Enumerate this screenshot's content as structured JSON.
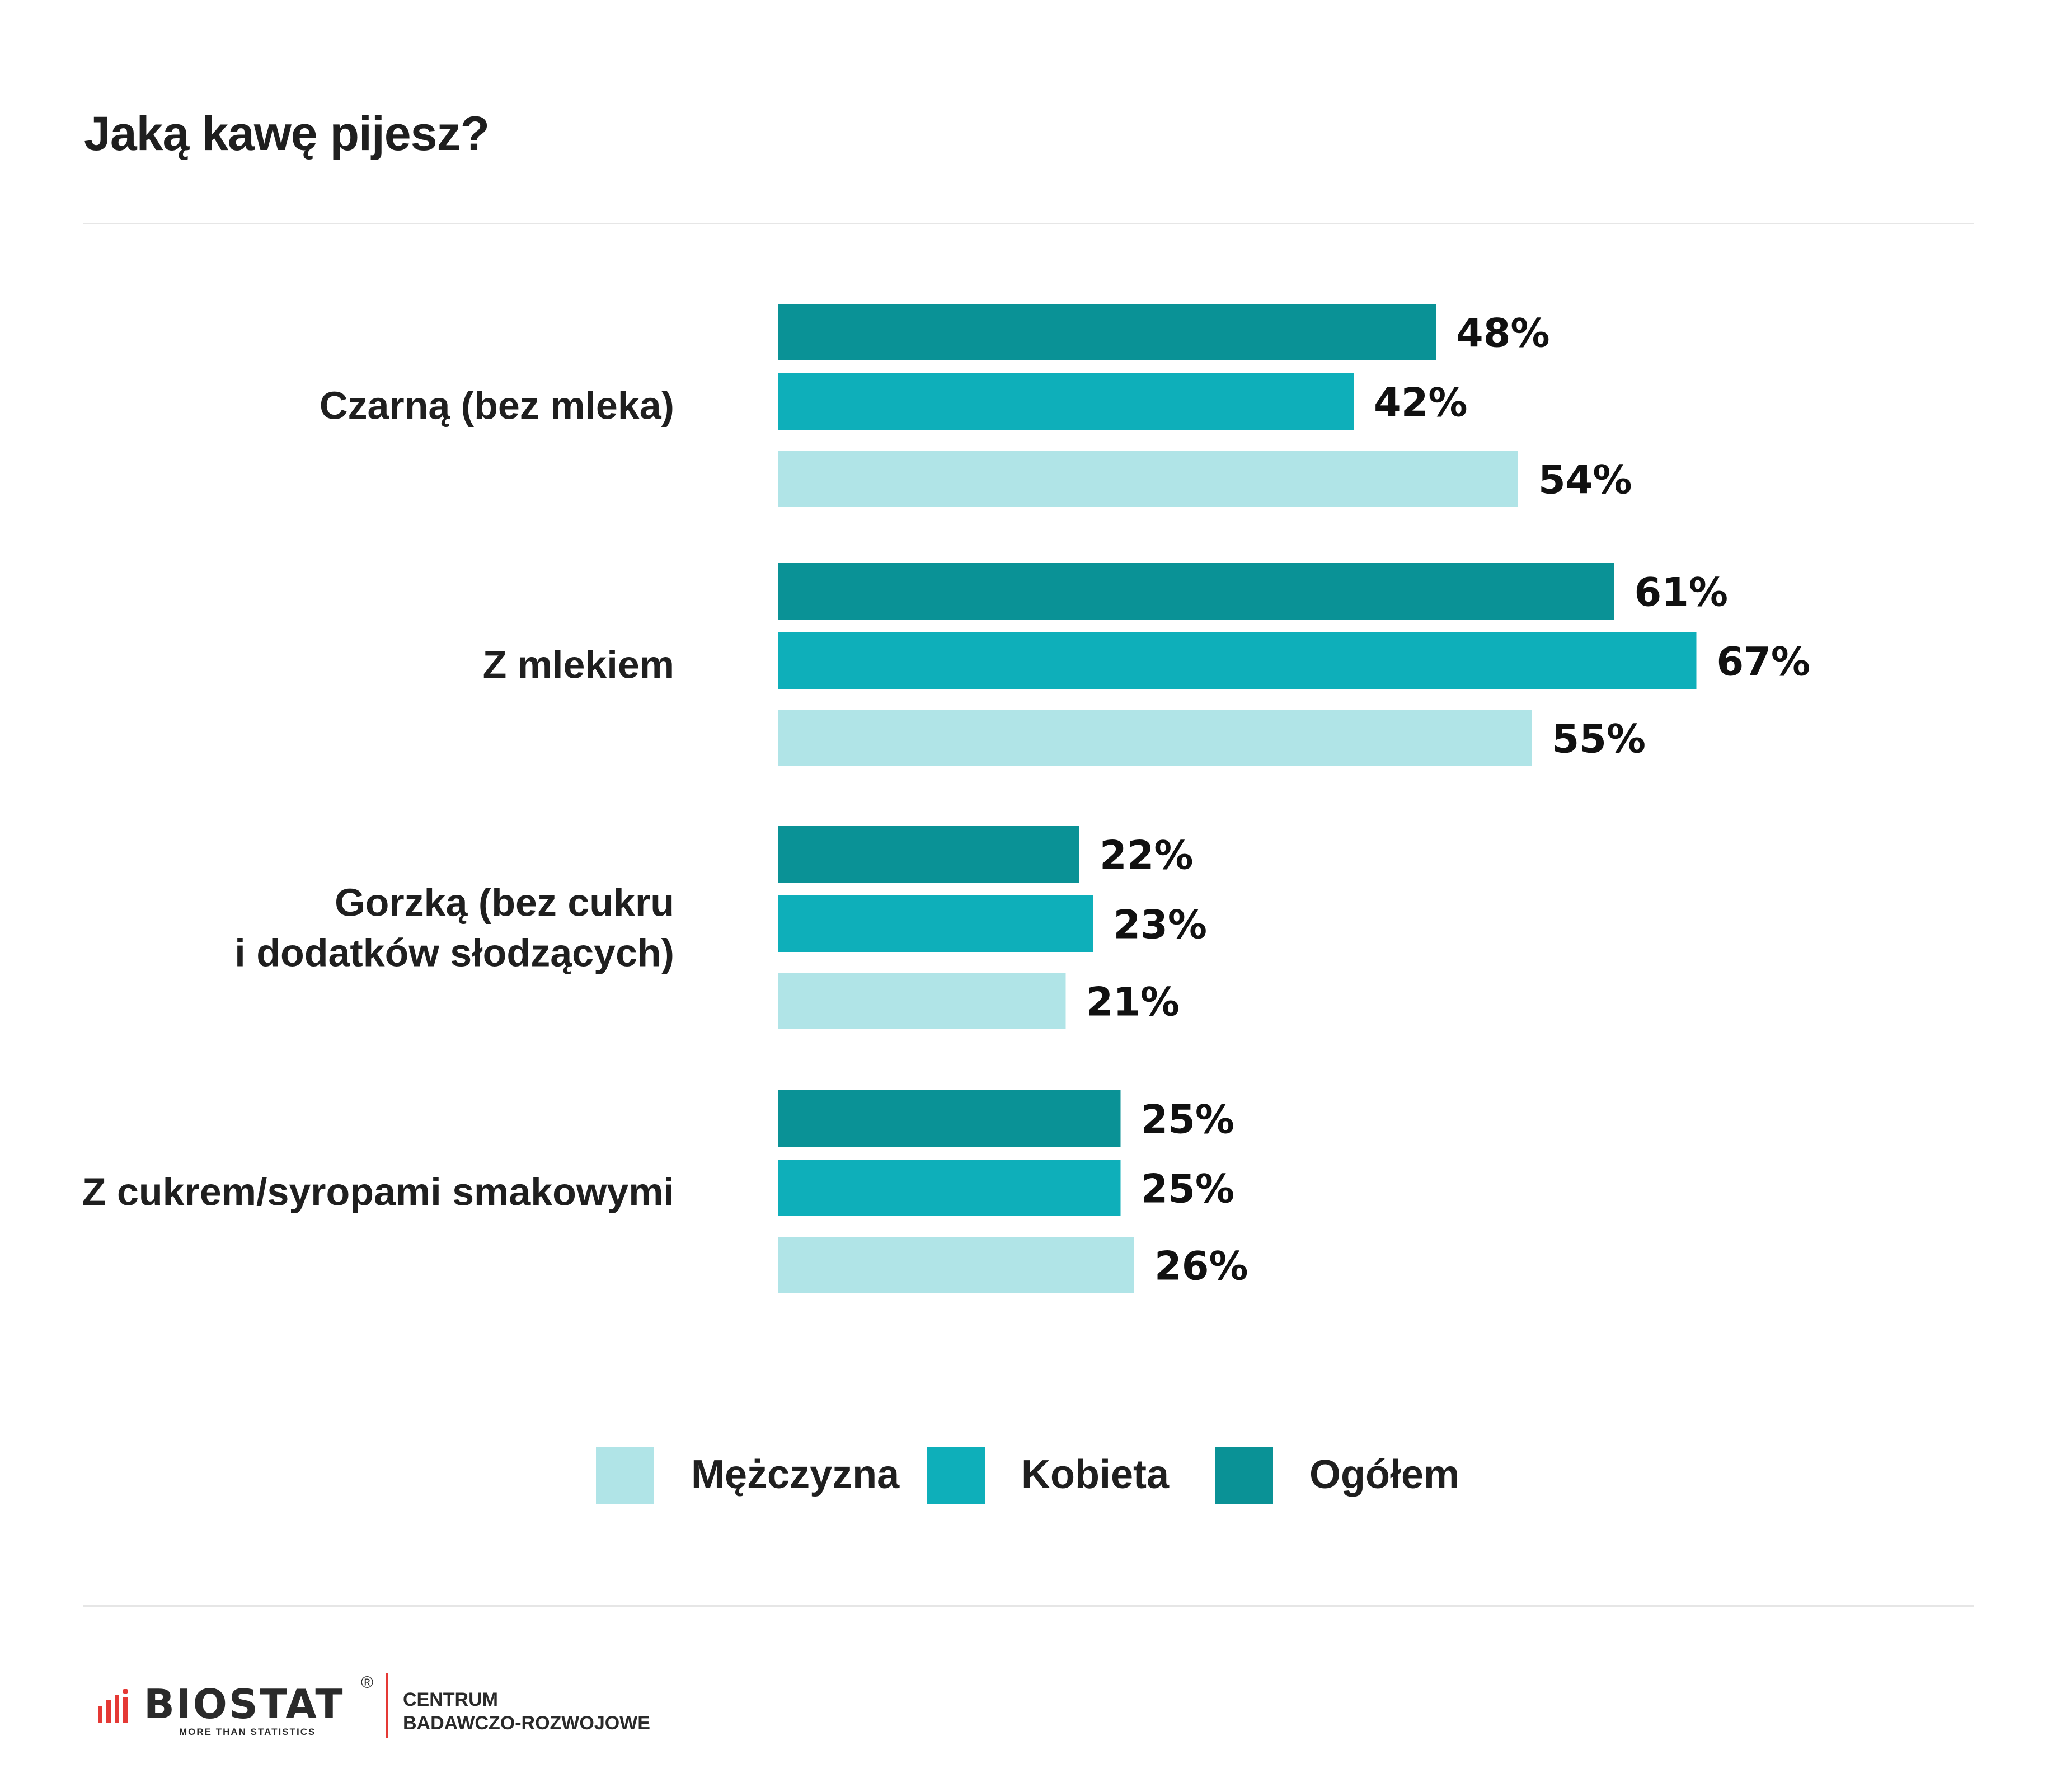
{
  "title": "Jaką kawę pijesz?",
  "legend": [
    {
      "label": "Mężczyzna",
      "color": "#b0e4e7"
    },
    {
      "label": "Kobieta",
      "color": "#0eafba"
    },
    {
      "label": "Ogółem",
      "color": "#0a9296"
    }
  ],
  "chart_data": {
    "type": "bar",
    "orientation": "horizontal",
    "title": "Jaką kawę pijesz?",
    "categories": [
      [
        "Czarną (bez mleka)"
      ],
      [
        "Z mlekiem"
      ],
      [
        "Gorzką (bez cukru",
        "i dodatków słodzących)"
      ],
      [
        "Z cukrem/syropami smakowymi"
      ]
    ],
    "series": [
      {
        "name": "Ogółem",
        "color": "#0a9296",
        "values": [
          48,
          61,
          22,
          25
        ],
        "labels": [
          "48%",
          "61%",
          "22%",
          "25%"
        ]
      },
      {
        "name": "Kobieta",
        "color": "#0eafba",
        "values": [
          42,
          67,
          23,
          25
        ],
        "labels": [
          "42%",
          "67%",
          "23%",
          "25%"
        ]
      },
      {
        "name": "Mężczyzna",
        "color": "#b0e4e7",
        "values": [
          54,
          55,
          21,
          26
        ],
        "labels": [
          "54%",
          "55%",
          "21%",
          "26%"
        ]
      }
    ],
    "value_suffix": "%",
    "grid": false,
    "axes_visible": false,
    "legend_position": "bottom"
  },
  "footer": {
    "logo_text": "BIOSTAT",
    "logo_registered": "®",
    "logo_tagline": "MORE THAN STATISTICS",
    "caption_line1": "CENTRUM",
    "caption_line2": "BADAWCZO-ROZWOJOWE",
    "logo_bar_color": "#e53935"
  }
}
